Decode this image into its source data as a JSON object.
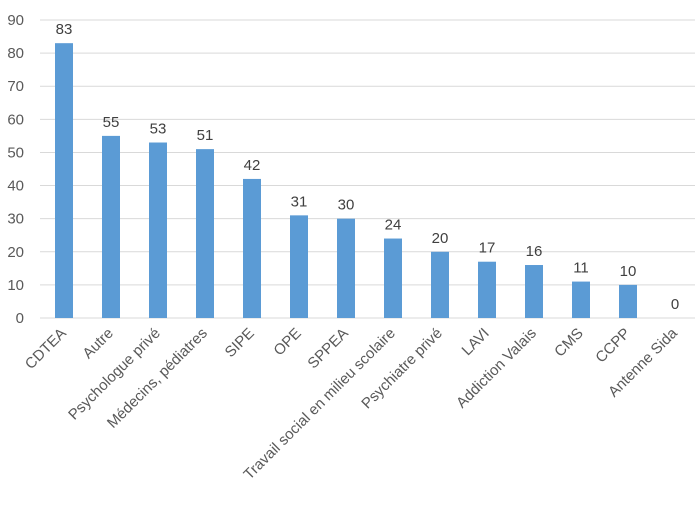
{
  "chart_data": {
    "type": "bar",
    "categories": [
      "CDTEA",
      "Autre",
      "Psychologue privé",
      "Médecins, pédiatres",
      "SIPE",
      "OPE",
      "SPPEA",
      "Travail social en milieu scolaire",
      "Psychiatre privé",
      "LAVI",
      "Addiction Valais",
      "CMS",
      "CCPP",
      "Antenne Sida"
    ],
    "values": [
      83,
      55,
      53,
      51,
      42,
      31,
      30,
      24,
      20,
      17,
      16,
      11,
      10,
      0
    ],
    "title": "",
    "xlabel": "",
    "ylabel": "",
    "ylim": [
      0,
      90
    ],
    "yticks": [
      0,
      10,
      20,
      30,
      40,
      50,
      60,
      70,
      80,
      90
    ],
    "grid": true,
    "legend": "none",
    "data_labels": true,
    "bar_color": "#5b9bd5"
  }
}
